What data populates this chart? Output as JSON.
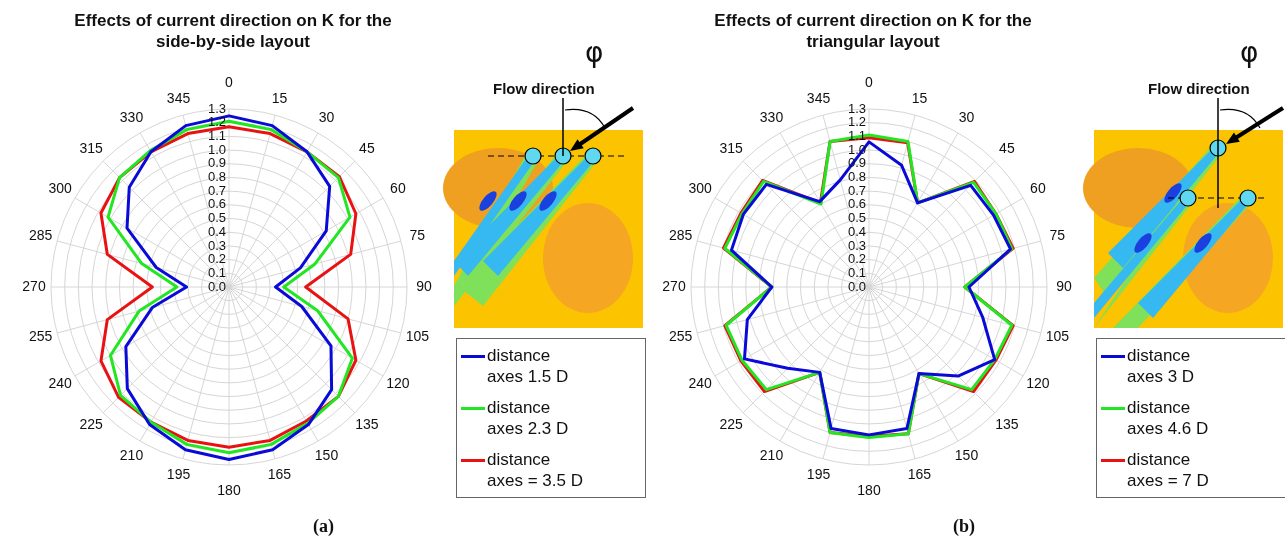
{
  "chart_data": [
    {
      "type": "radar",
      "title": "Effects of current direction on K for the side-by-side layout",
      "categories": [
        "0",
        "15",
        "30",
        "45",
        "60",
        "75",
        "90",
        "105",
        "120",
        "135",
        "150",
        "165",
        "180",
        "195",
        "210",
        "225",
        "240",
        "255",
        "270",
        "285",
        "300",
        "315",
        "330",
        "345"
      ],
      "series": [
        {
          "name": "distance axes 1.5 D",
          "color": "#0a0ad8",
          "values": [
            1.25,
            1.22,
            1.14,
            1.04,
            0.82,
            0.54,
            0.34,
            0.55,
            0.86,
            1.06,
            1.16,
            1.23,
            1.26,
            1.23,
            1.16,
            1.05,
            0.87,
            0.58,
            0.31,
            0.55,
            0.86,
            1.03,
            1.14,
            1.22
          ]
        },
        {
          "name": "distance axes 2.3 D",
          "color": "#22e622",
          "values": [
            1.21,
            1.19,
            1.14,
            1.13,
            1.02,
            0.65,
            0.4,
            0.67,
            1.04,
            1.13,
            1.15,
            1.19,
            1.21,
            1.19,
            1.14,
            1.12,
            1.0,
            0.68,
            0.38,
            0.66,
            1.02,
            1.13,
            1.15,
            1.19
          ]
        },
        {
          "name": "distance axes = 3.5 D",
          "color": "#e81212",
          "values": [
            1.17,
            1.16,
            1.14,
            1.14,
            1.07,
            0.92,
            0.56,
            0.9,
            1.07,
            1.13,
            1.13,
            1.16,
            1.17,
            1.16,
            1.14,
            1.14,
            1.08,
            0.92,
            0.56,
            0.92,
            1.08,
            1.13,
            1.14,
            1.16
          ]
        }
      ],
      "ylim": [
        0,
        1.3
      ],
      "yticks": [
        {
          "value": 0,
          "label": "0.0"
        },
        {
          "value": 0.1,
          "label": "0.1"
        },
        {
          "value": 0.2,
          "label": "0.2"
        },
        {
          "value": 0.3,
          "label": "0.3"
        },
        {
          "value": 0.4,
          "label": "0.4"
        },
        {
          "value": 0.5,
          "label": "0.5"
        },
        {
          "value": 0.6,
          "label": "0.6"
        },
        {
          "value": 0.7,
          "label": "0.7"
        },
        {
          "value": 0.8,
          "label": "0.8"
        },
        {
          "value": 0.9,
          "label": "0.9"
        },
        {
          "value": 1,
          "label": "1.0"
        },
        {
          "value": 1.1,
          "label": "1.1"
        },
        {
          "value": 1.2,
          "label": "1.2"
        },
        {
          "value": 1.3,
          "label": "1.3"
        }
      ],
      "grid": true,
      "legend": "right",
      "annotations": [
        "Flow direction",
        "φ",
        "(a)"
      ]
    },
    {
      "type": "radar",
      "title": "Effects of current direction on K for the triangular layout",
      "categories": [
        "0",
        "15",
        "30",
        "45",
        "60",
        "75",
        "90",
        "105",
        "120",
        "135",
        "150",
        "165",
        "180",
        "195",
        "210",
        "225",
        "240",
        "255",
        "270",
        "285",
        "300",
        "315",
        "330",
        "345"
      ],
      "series": [
        {
          "name": "distance axes 3 D",
          "color": "#0a0ad8",
          "values": [
            1.06,
            0.92,
            0.71,
            1.05,
            1.05,
            1.07,
            0.73,
            0.86,
            1.06,
            0.92,
            0.73,
            1.07,
            1.08,
            1.07,
            0.72,
            0.84,
            1.05,
            0.92,
            0.71,
            1.04,
            1.06,
            1.06,
            0.72,
            0.81
          ]
        },
        {
          "name": "distance axes 4.6 D",
          "color": "#22e622",
          "values": [
            1.11,
            1.1,
            0.71,
            1.08,
            1.07,
            1.08,
            0.7,
            1.08,
            1.06,
            1.06,
            0.73,
            1.11,
            1.1,
            1.1,
            0.72,
            1.06,
            1.07,
            1.08,
            0.71,
            1.09,
            1.07,
            1.09,
            0.7,
            1.1
          ]
        },
        {
          "name": "distance axes = 7 D",
          "color": "#e81212",
          "values": [
            1.09,
            1.09,
            0.71,
            1.09,
            1.07,
            1.09,
            0.7,
            1.09,
            1.07,
            1.08,
            0.73,
            1.11,
            1.09,
            1.1,
            0.72,
            1.08,
            1.08,
            1.09,
            0.71,
            1.1,
            1.08,
            1.1,
            0.71,
            1.1
          ]
        }
      ],
      "ylim": [
        0,
        1.3
      ],
      "yticks": [
        {
          "value": 0,
          "label": "0.0"
        },
        {
          "value": 0.1,
          "label": "0.1"
        },
        {
          "value": 0.2,
          "label": "0.2"
        },
        {
          "value": 0.3,
          "label": "0.3"
        },
        {
          "value": 0.4,
          "label": "0.4"
        },
        {
          "value": 0.5,
          "label": "0.5"
        },
        {
          "value": 0.6,
          "label": "0.6"
        },
        {
          "value": 0.7,
          "label": "0.7"
        },
        {
          "value": 0.8,
          "label": "0.8"
        },
        {
          "value": 0.9,
          "label": "0.9"
        },
        {
          "value": 1,
          "label": "1.0"
        },
        {
          "value": 1.1,
          "label": "1.1"
        },
        {
          "value": 1.2,
          "label": "1.2"
        },
        {
          "value": 1.3,
          "label": "1.3"
        }
      ],
      "grid": true,
      "legend": "right",
      "annotations": [
        "Flow direction",
        "φ",
        "(b)"
      ]
    }
  ]
}
